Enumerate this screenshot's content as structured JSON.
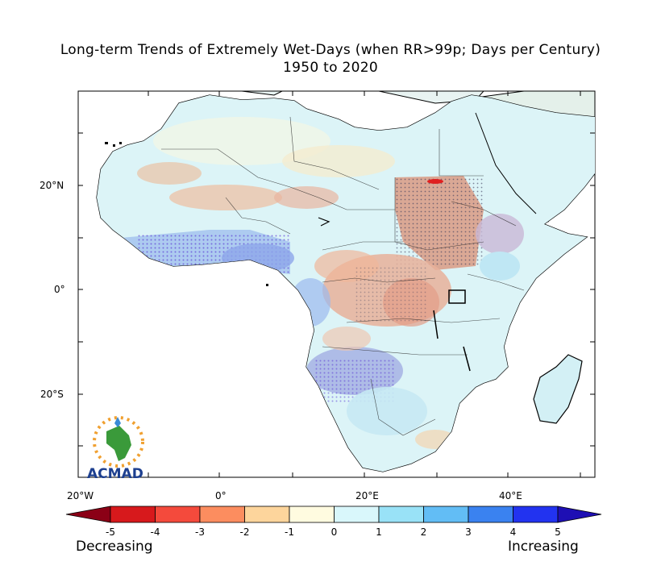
{
  "title": {
    "line1": "Long-term Trends of Extremely Wet-Days (when RR>99p; Days per Century)",
    "line2": "1950 to 2020"
  },
  "axes": {
    "lat_labels": [
      "20°N",
      "0°",
      "20°S"
    ],
    "lon_labels": [
      "20°W",
      "0°",
      "20°E",
      "40°E"
    ]
  },
  "colorbar": {
    "ticks": [
      "-5",
      "-4",
      "-3",
      "-2",
      "-1",
      "0",
      "1",
      "2",
      "3",
      "4",
      "5"
    ],
    "colors": [
      "#8b0016",
      "#d7191c",
      "#f44a3c",
      "#fc8d5f",
      "#fdd59c",
      "#fffbe0",
      "#d9f7fb",
      "#99e2f7",
      "#62bdf5",
      "#3a82f0",
      "#2233f0",
      "#1e0fb4"
    ],
    "left_label": "Decreasing",
    "right_label": "Increasing"
  },
  "logo": {
    "text": "ACMAD"
  },
  "colors": {
    "land_base": "#d8f2f5",
    "ocean": "#ffffff",
    "decrease_accent": "#d9a08a",
    "increase_accent": "#7d8bd6",
    "coast": "#000000"
  }
}
